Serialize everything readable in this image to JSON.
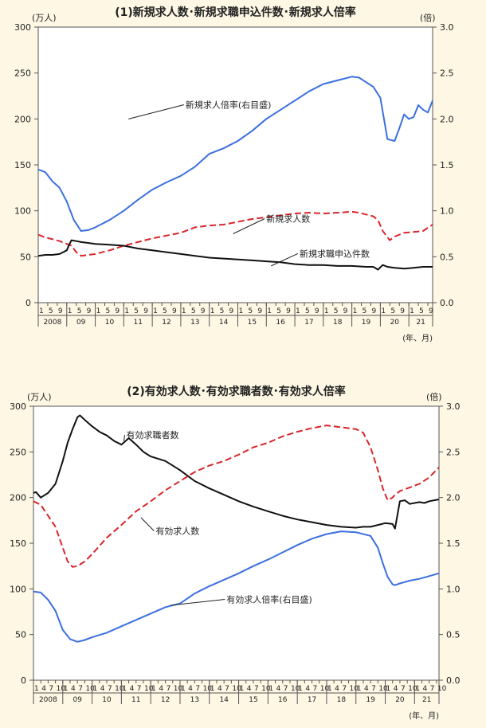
{
  "colors": {
    "background": "#fdf7e4",
    "blue": "#3b6fe0",
    "red": "#d9262c",
    "black": "#111111"
  },
  "chart_data": [
    {
      "type": "line",
      "title": "(1)新規求人数･新規求職申込件数･新規求人倍率",
      "left_unit": "(万人)",
      "right_unit": "(倍)",
      "x_unit": "(年、月)",
      "yleft_ticks": [
        "300",
        "250",
        "200",
        "150",
        "100",
        "50",
        "0"
      ],
      "yright_ticks": [
        "3.0",
        "2.5",
        "2.0",
        "1.5",
        "1.0",
        "0.5",
        "0.0"
      ],
      "ylim_left": [
        0,
        300
      ],
      "ylim_right": [
        0,
        3.0
      ],
      "xlim_months": [
        0,
        166
      ],
      "month_ticks": [
        "1",
        "5",
        "9"
      ],
      "years": [
        "2008",
        "09",
        "10",
        "11",
        "12",
        "13",
        "14",
        "15",
        "16",
        "17",
        "18",
        "19",
        "20",
        "21"
      ],
      "grid": false,
      "series": [
        {
          "name": "新規求人倍率(右目盛)",
          "label": "新規求人倍率(右目盛)",
          "axis": "right",
          "style": "solid",
          "color": "#3b6fe0",
          "x": [
            0,
            3,
            6,
            9,
            12,
            15,
            18,
            21,
            24,
            30,
            36,
            42,
            48,
            54,
            60,
            66,
            72,
            78,
            84,
            90,
            96,
            102,
            108,
            114,
            120,
            126,
            132,
            135,
            138,
            141,
            144,
            147,
            150,
            152,
            154,
            156,
            158,
            160,
            162,
            164,
            166
          ],
          "y": [
            1.45,
            1.42,
            1.32,
            1.25,
            1.1,
            0.9,
            0.78,
            0.79,
            0.82,
            0.9,
            1.0,
            1.12,
            1.23,
            1.31,
            1.38,
            1.48,
            1.62,
            1.68,
            1.76,
            1.87,
            2.0,
            2.1,
            2.2,
            2.3,
            2.38,
            2.42,
            2.46,
            2.45,
            2.4,
            2.35,
            2.23,
            1.78,
            1.76,
            1.9,
            2.05,
            2.0,
            2.02,
            2.15,
            2.1,
            2.07,
            2.2
          ]
        },
        {
          "name": "新規求人数",
          "label": "新規求人数",
          "axis": "left",
          "style": "dashed",
          "color": "#d9262c",
          "x": [
            0,
            3,
            6,
            9,
            12,
            14,
            16,
            18,
            21,
            24,
            30,
            36,
            42,
            48,
            54,
            60,
            66,
            72,
            78,
            84,
            90,
            96,
            102,
            108,
            114,
            120,
            126,
            132,
            135,
            138,
            141,
            143,
            145,
            148,
            150,
            154,
            158,
            162,
            166
          ],
          "y": [
            74,
            71,
            69,
            67,
            64,
            62,
            55,
            51,
            52,
            53,
            57,
            62,
            66,
            70,
            73,
            76,
            82,
            84,
            85,
            88,
            91,
            93,
            95,
            97,
            98,
            97,
            98,
            99,
            98,
            96,
            94,
            90,
            78,
            68,
            72,
            76,
            77,
            78,
            85
          ]
        },
        {
          "name": "新規求職申込件数",
          "label": "新規求職申込件数",
          "axis": "left",
          "style": "solid",
          "color": "#111111",
          "x": [
            0,
            3,
            6,
            9,
            12,
            13,
            14,
            16,
            18,
            21,
            24,
            30,
            36,
            42,
            48,
            54,
            60,
            66,
            72,
            78,
            84,
            90,
            96,
            102,
            108,
            114,
            120,
            126,
            132,
            138,
            141,
            143,
            145,
            147,
            150,
            154,
            158,
            162,
            166
          ],
          "y": [
            51,
            52,
            52,
            53,
            57,
            63,
            68,
            67,
            66,
            65,
            64,
            63,
            62,
            59,
            57,
            55,
            53,
            51,
            49,
            48,
            47,
            46,
            45,
            44,
            42,
            41,
            41,
            40,
            40,
            39,
            39,
            36,
            41,
            39,
            38,
            37,
            38,
            39,
            39
          ]
        }
      ]
    },
    {
      "type": "line",
      "title": "(2)有効求人数･有効求職者数･有効求人倍率",
      "left_unit": "(万人)",
      "right_unit": "(倍)",
      "x_unit": "(年、月)",
      "yleft_ticks": [
        "300",
        "250",
        "200",
        "150",
        "100",
        "50",
        "0"
      ],
      "yright_ticks": [
        "3.0",
        "2.5",
        "2.0",
        "1.5",
        "1.0",
        "0.5",
        "0.0"
      ],
      "ylim_left": [
        0,
        300
      ],
      "ylim_right": [
        0,
        3.0
      ],
      "xlim_months": [
        0,
        166
      ],
      "month_ticks": [
        "1",
        "4",
        "7",
        "10"
      ],
      "years": [
        "2008",
        "09",
        "10",
        "11",
        "12",
        "13",
        "14",
        "15",
        "16",
        "17",
        "18",
        "19",
        "20",
        "21"
      ],
      "grid": false,
      "series": [
        {
          "name": "有効求職者数",
          "label": "有効求職者数",
          "axis": "left",
          "style": "solid",
          "color": "#111111",
          "x": [
            0,
            1,
            3,
            6,
            9,
            12,
            14,
            16,
            18,
            19,
            21,
            24,
            27,
            30,
            33,
            36,
            39,
            42,
            45,
            48,
            54,
            60,
            66,
            72,
            78,
            84,
            90,
            96,
            102,
            108,
            114,
            120,
            126,
            132,
            135,
            138,
            141,
            144,
            147,
            148,
            150,
            152,
            154,
            156,
            158,
            160,
            162,
            164,
            166
          ],
          "y": [
            205,
            206,
            200,
            205,
            215,
            240,
            260,
            275,
            288,
            290,
            285,
            278,
            272,
            268,
            262,
            258,
            265,
            258,
            250,
            245,
            240,
            230,
            218,
            210,
            203,
            196,
            190,
            185,
            180,
            176,
            173,
            170,
            168,
            167,
            168,
            168,
            170,
            172,
            171,
            166,
            196,
            197,
            193,
            194,
            195,
            194,
            196,
            197,
            198
          ]
        },
        {
          "name": "有効求人数",
          "label": "有効求人数",
          "axis": "left",
          "style": "dashed",
          "color": "#d9262c",
          "x": [
            0,
            3,
            6,
            9,
            12,
            14,
            16,
            18,
            21,
            24,
            27,
            30,
            36,
            42,
            48,
            54,
            60,
            66,
            72,
            78,
            84,
            90,
            96,
            102,
            108,
            114,
            120,
            126,
            132,
            135,
            138,
            141,
            143,
            145,
            147,
            148,
            150,
            154,
            158,
            162,
            166
          ],
          "y": [
            196,
            192,
            180,
            168,
            145,
            130,
            124,
            125,
            130,
            138,
            147,
            156,
            170,
            185,
            196,
            208,
            218,
            228,
            235,
            240,
            247,
            255,
            260,
            267,
            272,
            276,
            279,
            277,
            275,
            271,
            255,
            230,
            210,
            197,
            200,
            203,
            207,
            211,
            215,
            222,
            233
          ]
        },
        {
          "name": "有効求人倍率(右目盛)",
          "label": "有効求人倍率(右目盛)",
          "axis": "right",
          "style": "solid",
          "color": "#3b6fe0",
          "x": [
            0,
            3,
            6,
            9,
            12,
            15,
            18,
            21,
            24,
            30,
            36,
            42,
            48,
            54,
            60,
            66,
            72,
            78,
            84,
            90,
            96,
            102,
            108,
            114,
            120,
            126,
            132,
            138,
            141,
            143,
            145,
            147,
            148,
            150,
            154,
            158,
            162,
            166
          ],
          "y": [
            0.97,
            0.96,
            0.88,
            0.76,
            0.55,
            0.45,
            0.42,
            0.44,
            0.47,
            0.52,
            0.59,
            0.66,
            0.73,
            0.8,
            0.84,
            0.95,
            1.03,
            1.1,
            1.17,
            1.25,
            1.32,
            1.4,
            1.48,
            1.55,
            1.6,
            1.63,
            1.62,
            1.58,
            1.45,
            1.28,
            1.13,
            1.05,
            1.04,
            1.06,
            1.09,
            1.11,
            1.14,
            1.17
          ]
        }
      ]
    }
  ]
}
